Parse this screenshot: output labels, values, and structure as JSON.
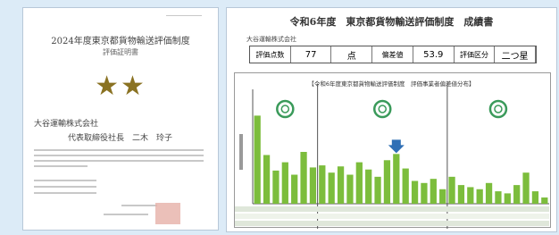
{
  "certificate": {
    "title": "2024年度東京都貨物輸送評価制度",
    "subtitle": "評価証明書",
    "stars": "★★",
    "company": "大谷運輸株式会社",
    "representative": "代表取締役社長　二木　玲子"
  },
  "report": {
    "title": "令和6年度　東京都貨物輸送評価制度　成績書",
    "company": "大谷運輸株式会社",
    "score_table": [
      [
        "評価点数",
        "77",
        "点"
      ],
      [
        "偏差値",
        "53.9"
      ],
      [
        "評価区分",
        "二つ星"
      ]
    ],
    "chart": {
      "type": "bar",
      "title": "【令和6年度東京都貨物輸送評価制度　評価事業者偏差値分布】",
      "color": "#7cbd3c",
      "ylim": [
        0,
        100
      ],
      "values": [
        85,
        47,
        32,
        40,
        28,
        50,
        35,
        37,
        30,
        36,
        28,
        40,
        33,
        26,
        42,
        48,
        34,
        22,
        20,
        24,
        14,
        26,
        18,
        16,
        14,
        20,
        12,
        10,
        18,
        30,
        12,
        6
      ]
    }
  }
}
